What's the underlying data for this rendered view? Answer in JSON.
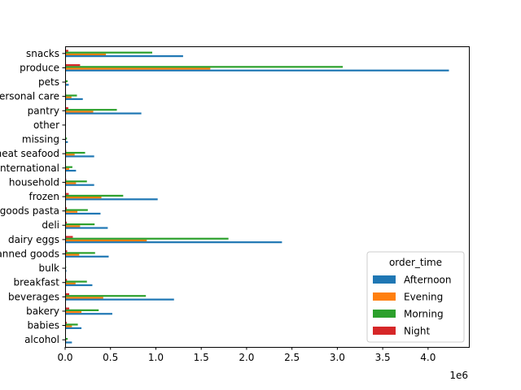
{
  "chart_data": {
    "type": "bar",
    "orientation": "horizontal",
    "categories": [
      "alcohol",
      "babies",
      "bakery",
      "beverages",
      "breakfast",
      "bulk",
      "canned goods",
      "dairy eggs",
      "deli",
      "dry goods pasta",
      "frozen",
      "household",
      "international",
      "meat seafood",
      "missing",
      "other",
      "pantry",
      "personal care",
      "pets",
      "produce",
      "snacks"
    ],
    "series": [
      {
        "name": "Afternoon",
        "color": "#1f77b4",
        "values": [
          75000,
          180000,
          520000,
          1200000,
          300000,
          14000,
          480000,
          2390000,
          470000,
          390000,
          1020000,
          320000,
          120000,
          320000,
          30000,
          8000,
          840000,
          195000,
          40000,
          4230000,
          1300000
        ]
      },
      {
        "name": "Evening",
        "color": "#ff7f0e",
        "values": [
          12000,
          75000,
          180000,
          420000,
          115000,
          3000,
          155000,
          900000,
          165000,
          135000,
          400000,
          120000,
          45000,
          105000,
          8000,
          2500,
          310000,
          70000,
          12000,
          1600000,
          450000
        ]
      },
      {
        "name": "Morning",
        "color": "#2ca02c",
        "values": [
          28000,
          140000,
          370000,
          890000,
          240000,
          11000,
          330000,
          1800000,
          325000,
          250000,
          640000,
          240000,
          80000,
          220000,
          20000,
          6000,
          570000,
          130000,
          28000,
          3060000,
          960000
        ]
      },
      {
        "name": "Night",
        "color": "#d62728",
        "values": [
          6000,
          18000,
          45000,
          45000,
          20000,
          1000,
          22000,
          85000,
          18000,
          18000,
          40000,
          12000,
          6000,
          12000,
          2000,
          600,
          35000,
          10000,
          2000,
          165000,
          35000
        ]
      }
    ],
    "xlim": [
      0,
      4450000
    ],
    "xticks": [
      0,
      500000,
      1000000,
      1500000,
      2000000,
      2500000,
      3000000,
      3500000,
      4000000
    ],
    "xtick_labels": [
      "0.0",
      "0.5",
      "1.0",
      "1.5",
      "2.0",
      "2.5",
      "3.0",
      "3.5",
      "4.0"
    ],
    "offset_label": "1e6",
    "legend_title": "order_time",
    "legend_position": "lower-right",
    "grid": false,
    "title": "",
    "xlabel": "",
    "ylabel": ""
  }
}
